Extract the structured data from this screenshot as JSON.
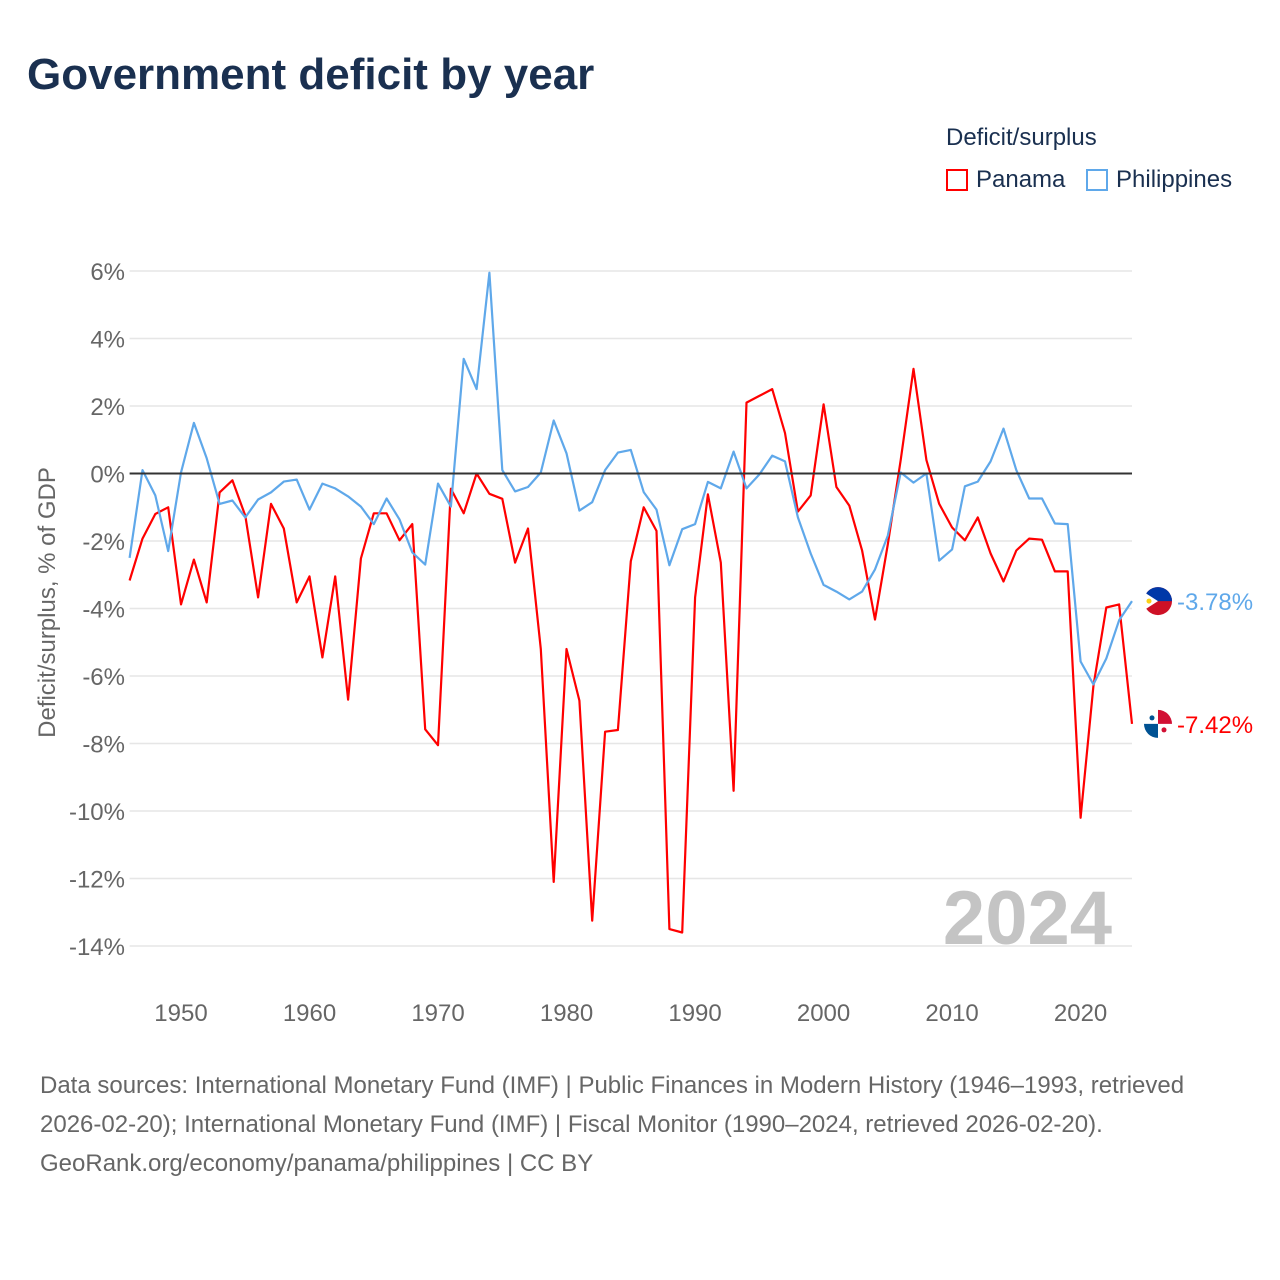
{
  "title": "Government deficit by year",
  "legend": {
    "title": "Deficit/surplus",
    "items": [
      "Panama",
      "Philippines"
    ]
  },
  "colors": {
    "Panama": "#ff0000",
    "Philippines": "#5fa8ea"
  },
  "source": {
    "line1": "Data sources: International Monetary Fund (IMF) | Public Finances in Modern History (1946–1993, retrieved 2026-02-20); International Monetary Fund (IMF) | Fiscal Monitor (1990–2024, retrieved 2026-02-20).",
    "line2": "GeoRank.org/economy/panama/philippines | CC BY"
  },
  "chart_data": {
    "type": "line",
    "title": "Government deficit by year",
    "ylabel": "Deficit/surplus, % of GDP",
    "xlabel": "",
    "year_label": "2024",
    "ylim": [
      -14,
      6
    ],
    "xlim": [
      1946,
      2024
    ],
    "yticks": [
      6,
      4,
      2,
      0,
      -2,
      -4,
      -6,
      -8,
      -10,
      -12,
      -14
    ],
    "ytick_labels": [
      "6%",
      "4%",
      "2%",
      "0%",
      "-2%",
      "-4%",
      "-6%",
      "-8%",
      "-10%",
      "-12%",
      "-14%"
    ],
    "xticks": [
      1950,
      1960,
      1970,
      1980,
      1990,
      2000,
      2010,
      2020
    ],
    "xtick_labels": [
      "1950",
      "1960",
      "1970",
      "1980",
      "1990",
      "2000",
      "2010",
      "2020"
    ],
    "x_start": 1946,
    "end_labels": {
      "Panama": "-7.42%",
      "Philippines": "-3.78%"
    },
    "series": [
      {
        "name": "Panama",
        "values": [
          -3.17,
          -1.93,
          -1.2,
          -1.0,
          -3.88,
          -2.55,
          -3.82,
          -0.56,
          -0.2,
          -1.25,
          -3.67,
          -0.9,
          -1.63,
          -3.82,
          -3.05,
          -5.45,
          -3.05,
          -6.7,
          -2.52,
          -1.18,
          -1.18,
          -1.98,
          -1.5,
          -7.58,
          -8.05,
          -0.45,
          -1.18,
          0,
          -0.6,
          -0.75,
          -2.64,
          -1.63,
          -5.2,
          -12.1,
          -5.2,
          -6.73,
          -13.25,
          -7.65,
          -7.6,
          -2.6,
          -1.0,
          -1.7,
          -13.5,
          -13.6,
          -3.67,
          -0.62,
          -2.64,
          -9.4,
          2.1,
          2.3,
          2.5,
          1.2,
          -1.13,
          -0.65,
          2.05,
          -0.4,
          -0.95,
          -2.28,
          -4.33,
          -2.1,
          0.4,
          3.1,
          0.4,
          -0.9,
          -1.6,
          -1.98,
          -1.3,
          -2.37,
          -3.2,
          -2.28,
          -1.93,
          -1.96,
          -2.9,
          -2.9,
          -10.2,
          -6.3,
          -3.97,
          -3.88,
          -7.42
        ]
      },
      {
        "name": "Philippines",
        "values": [
          -2.5,
          0.1,
          -0.65,
          -2.3,
          0.03,
          1.5,
          0.45,
          -0.9,
          -0.8,
          -1.3,
          -0.77,
          -0.56,
          -0.24,
          -0.18,
          -1.07,
          -0.3,
          -0.44,
          -0.68,
          -0.98,
          -1.5,
          -0.74,
          -1.36,
          -2.34,
          -2.7,
          -0.3,
          -0.98,
          3.4,
          2.5,
          5.95,
          0.1,
          -0.53,
          -0.4,
          0.03,
          1.57,
          0.6,
          -1.1,
          -0.85,
          0.1,
          0.62,
          0.7,
          -0.55,
          -1.07,
          -2.72,
          -1.65,
          -1.5,
          -0.25,
          -0.44,
          0.65,
          -0.44,
          -0.03,
          0.53,
          0.36,
          -1.3,
          -2.37,
          -3.3,
          -3.5,
          -3.73,
          -3.5,
          -2.84,
          -1.84,
          0.03,
          -0.27,
          0,
          -2.58,
          -2.25,
          -0.38,
          -0.24,
          0.36,
          1.33,
          0.1,
          -0.74,
          -0.74,
          -1.48,
          -1.5,
          -5.57,
          -6.25,
          -5.48,
          -4.35,
          -3.78
        ]
      }
    ]
  }
}
